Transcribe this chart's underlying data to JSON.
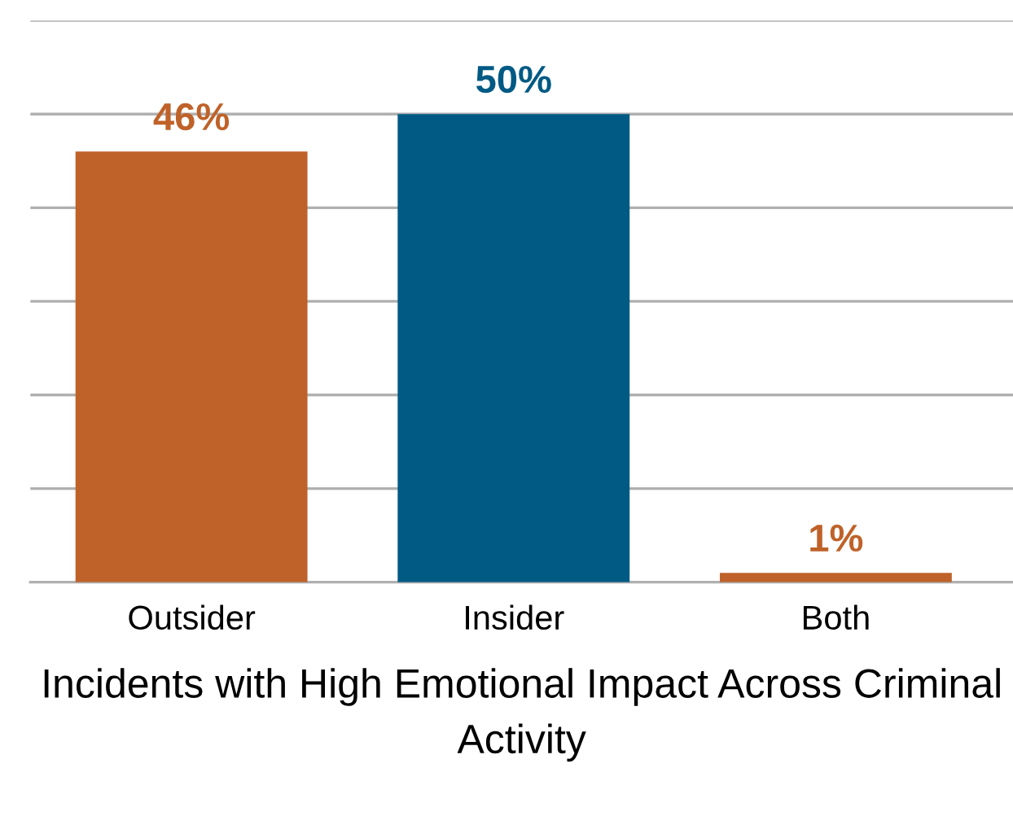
{
  "chart_data": {
    "type": "bar",
    "xlabel": "Incidents with High Emotional Impact Across Criminal Activity",
    "categories": [
      "Outsider",
      "Insider",
      "Both"
    ],
    "values": [
      46,
      50,
      1
    ],
    "colors": [
      "#bf6229",
      "#005a84",
      "#bf6229"
    ],
    "value_labels": [
      "46%",
      "50%",
      "1%"
    ],
    "ylim": [
      0,
      60
    ],
    "yticks": [
      {
        "value": 0,
        "label": null
      },
      {
        "value": 10,
        "label": null
      },
      {
        "value": 20,
        "label": null
      },
      {
        "value": 30,
        "label": null
      },
      {
        "value": 40,
        "label": null
      },
      {
        "value": 50,
        "label": null
      },
      {
        "value": 60,
        "label": null
      }
    ],
    "tick_labels": "x",
    "grid": "y",
    "legend": false
  }
}
